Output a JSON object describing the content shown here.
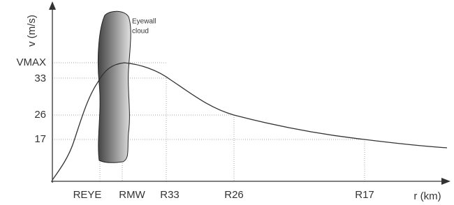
{
  "axes": {
    "y_label": "v (m/s)",
    "x_label": "r (km)"
  },
  "y_levels": [
    "VMAX",
    "33",
    "26",
    "17"
  ],
  "x_levels": [
    "REYE",
    "RMW",
    "R33",
    "R26",
    "R17"
  ],
  "annotation": {
    "line1": "Eyewall",
    "line2": "cloud"
  }
}
